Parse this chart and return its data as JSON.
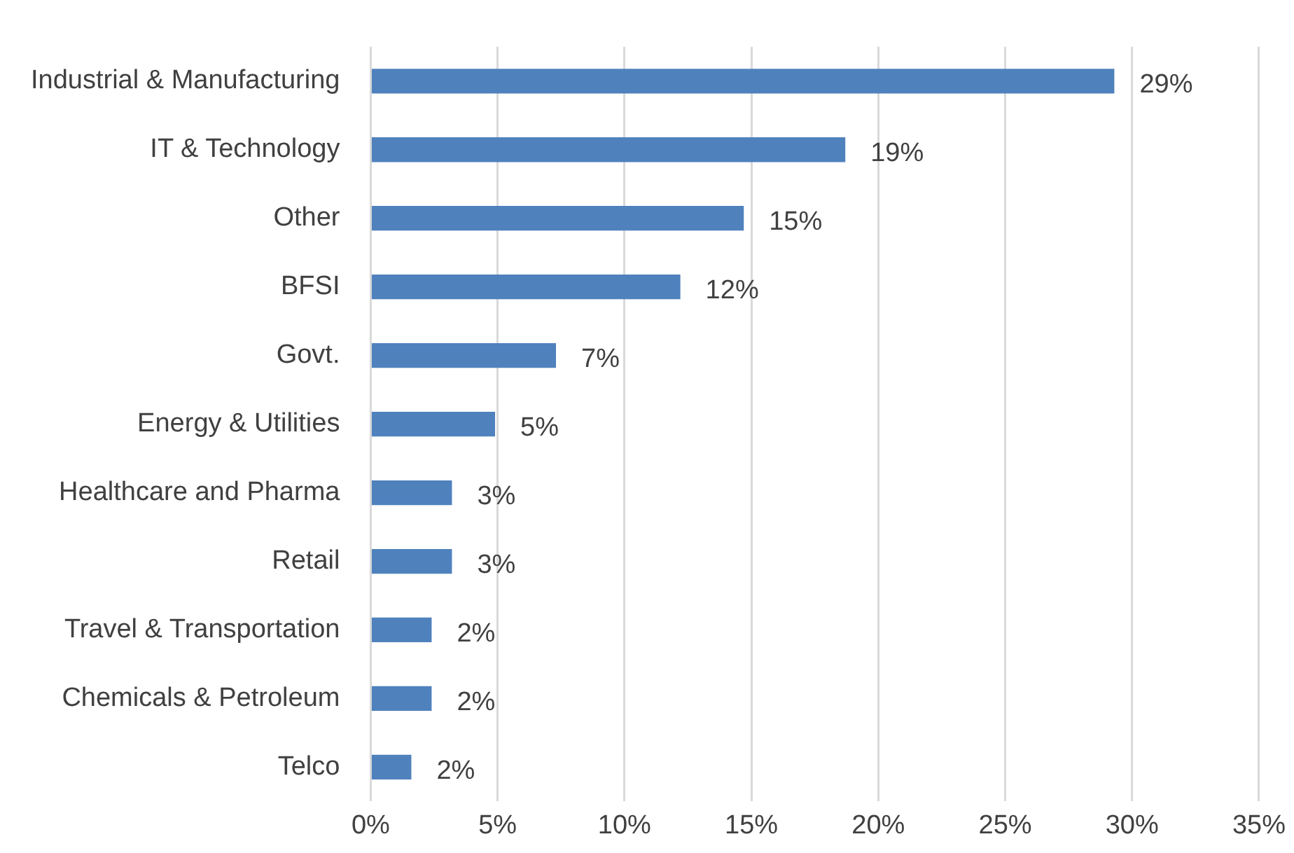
{
  "chart_data": {
    "type": "bar",
    "orientation": "horizontal",
    "categories": [
      "Industrial & Manufacturing",
      "IT & Technology",
      "Other",
      "BFSI",
      "Govt.",
      "Energy & Utilities",
      "Healthcare and Pharma",
      "Retail",
      "Travel & Transportation",
      "Chemicals & Petroleum",
      "Telco"
    ],
    "values": [
      29.3,
      18.7,
      14.7,
      12.2,
      7.3,
      4.9,
      3.2,
      3.2,
      2.4,
      2.4,
      1.6
    ],
    "value_labels": [
      "29%",
      "19%",
      "15%",
      "12%",
      "7%",
      "5%",
      "3%",
      "3%",
      "2%",
      "2%",
      "2%"
    ],
    "color": "#4f81bd",
    "xlim": [
      0,
      35
    ],
    "xticks": [
      {
        "value": 0,
        "label": "0%"
      },
      {
        "value": 5,
        "label": "5%"
      },
      {
        "value": 10,
        "label": "10%"
      },
      {
        "value": 15,
        "label": "15%"
      },
      {
        "value": 20,
        "label": "20%"
      },
      {
        "value": 25,
        "label": "25%"
      },
      {
        "value": 30,
        "label": "30%"
      },
      {
        "value": 35,
        "label": "35%"
      }
    ],
    "grid": "x",
    "legend": false
  }
}
